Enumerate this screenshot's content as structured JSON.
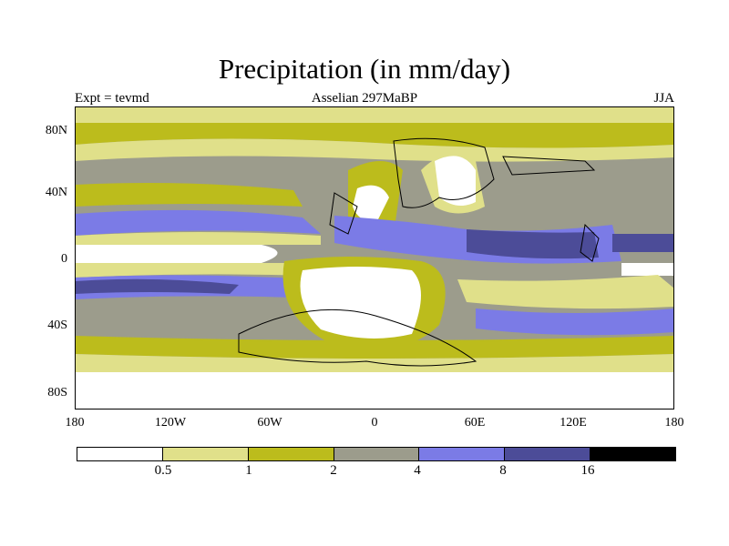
{
  "title": "Precipitation (in mm/day)",
  "subtitle_left": "Expt = tevmd",
  "subtitle_center": "Asselian 297MaBP",
  "subtitle_right": "JJA",
  "latitude_labels": [
    "80N",
    "40N",
    "0",
    "40S",
    "80S"
  ],
  "longitude_labels": [
    "180",
    "120W",
    "60W",
    "0",
    "60E",
    "120E",
    "180"
  ],
  "colorbar": {
    "colors": [
      "#ffffff",
      "#e0e08a",
      "#bcbc1c",
      "#9c9c8c",
      "#7b7be6",
      "#4c4c98",
      "#000000"
    ],
    "labels": [
      "0.5",
      "1",
      "2",
      "4",
      "8",
      "16"
    ]
  }
}
